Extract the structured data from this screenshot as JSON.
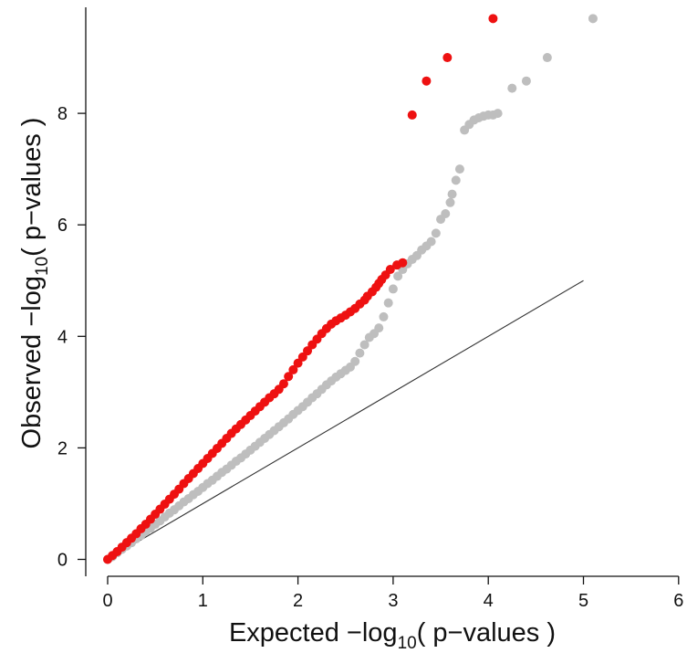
{
  "chart_data": {
    "type": "scatter",
    "title": "",
    "xlabel": {
      "pre": "Expected −log",
      "sub": "10",
      "post": "( p−values )"
    },
    "ylabel": {
      "pre": "Observed −log",
      "sub": "10",
      "post": "( p−values )"
    },
    "xlim": [
      0,
      6
    ],
    "ylim": [
      0,
      9.7
    ],
    "x_ticks": [
      0,
      1,
      2,
      3,
      4,
      5,
      6
    ],
    "y_ticks": [
      0,
      2,
      4,
      6,
      8
    ],
    "grid": false,
    "reference_line": {
      "x": [
        0,
        5
      ],
      "y": [
        0,
        5
      ],
      "color": "#333333"
    },
    "series": [
      {
        "color": "#bebebe",
        "x": [
          0.0,
          0.05,
          0.1,
          0.15,
          0.2,
          0.25,
          0.3,
          0.35,
          0.4,
          0.45,
          0.5,
          0.55,
          0.6,
          0.65,
          0.7,
          0.75,
          0.8,
          0.85,
          0.9,
          0.95,
          1.0,
          1.05,
          1.1,
          1.15,
          1.2,
          1.25,
          1.3,
          1.35,
          1.4,
          1.45,
          1.5,
          1.55,
          1.6,
          1.65,
          1.7,
          1.75,
          1.8,
          1.85,
          1.9,
          1.95,
          2.0,
          2.05,
          2.1,
          2.15,
          2.2,
          2.25,
          2.3,
          2.35,
          2.4,
          2.45,
          2.5,
          2.55,
          2.6,
          2.65,
          2.7,
          2.75,
          2.8,
          2.85,
          2.9,
          2.95,
          3.0,
          3.05,
          3.1,
          3.15,
          3.2,
          3.25,
          3.3,
          3.35,
          3.4,
          3.45,
          3.5,
          3.55,
          3.6,
          3.62,
          3.66,
          3.7,
          3.75,
          3.8,
          3.85,
          3.9,
          3.95,
          4.0,
          4.05,
          4.1,
          4.25,
          4.4,
          4.62,
          5.1
        ],
        "y": [
          0.0,
          0.05,
          0.12,
          0.18,
          0.24,
          0.3,
          0.37,
          0.43,
          0.5,
          0.56,
          0.63,
          0.69,
          0.76,
          0.83,
          0.89,
          0.96,
          1.03,
          1.09,
          1.16,
          1.22,
          1.29,
          1.36,
          1.42,
          1.49,
          1.56,
          1.62,
          1.69,
          1.76,
          1.82,
          1.89,
          1.96,
          2.03,
          2.1,
          2.17,
          2.24,
          2.31,
          2.38,
          2.45,
          2.52,
          2.6,
          2.67,
          2.74,
          2.82,
          2.9,
          2.97,
          3.05,
          3.13,
          3.2,
          3.27,
          3.33,
          3.39,
          3.45,
          3.55,
          3.7,
          3.85,
          3.98,
          4.05,
          4.15,
          4.35,
          4.6,
          4.85,
          5.08,
          5.2,
          5.3,
          5.38,
          5.45,
          5.55,
          5.62,
          5.7,
          5.85,
          6.1,
          6.2,
          6.4,
          6.55,
          6.8,
          7.0,
          7.7,
          7.8,
          7.88,
          7.92,
          7.95,
          7.97,
          7.97,
          8.0,
          8.45,
          8.58,
          9.0,
          9.7
        ]
      },
      {
        "color": "#ee1111",
        "x": [
          0.0,
          0.05,
          0.1,
          0.15,
          0.2,
          0.25,
          0.3,
          0.35,
          0.4,
          0.45,
          0.5,
          0.55,
          0.6,
          0.65,
          0.7,
          0.75,
          0.8,
          0.85,
          0.9,
          0.95,
          1.0,
          1.05,
          1.1,
          1.15,
          1.2,
          1.25,
          1.3,
          1.35,
          1.4,
          1.45,
          1.5,
          1.55,
          1.6,
          1.65,
          1.7,
          1.75,
          1.8,
          1.85,
          1.9,
          1.95,
          2.0,
          2.05,
          2.1,
          2.15,
          2.2,
          2.25,
          2.3,
          2.35,
          2.4,
          2.45,
          2.5,
          2.55,
          2.6,
          2.65,
          2.7,
          2.73,
          2.78,
          2.82,
          2.85,
          2.88,
          2.92,
          2.97,
          3.04,
          3.1,
          3.2,
          3.35,
          3.57,
          4.05
        ],
        "y": [
          0.0,
          0.07,
          0.14,
          0.22,
          0.3,
          0.38,
          0.46,
          0.55,
          0.63,
          0.72,
          0.81,
          0.9,
          0.99,
          1.08,
          1.17,
          1.26,
          1.36,
          1.45,
          1.54,
          1.63,
          1.72,
          1.81,
          1.9,
          1.99,
          2.08,
          2.17,
          2.26,
          2.34,
          2.42,
          2.5,
          2.58,
          2.66,
          2.74,
          2.82,
          2.9,
          2.97,
          3.05,
          3.15,
          3.28,
          3.4,
          3.52,
          3.63,
          3.74,
          3.85,
          3.95,
          4.05,
          4.14,
          4.22,
          4.28,
          4.33,
          4.38,
          4.44,
          4.5,
          4.58,
          4.65,
          4.72,
          4.8,
          4.88,
          4.95,
          5.02,
          5.1,
          5.2,
          5.28,
          5.32,
          7.97,
          8.58,
          9.0,
          9.7
        ]
      }
    ]
  }
}
